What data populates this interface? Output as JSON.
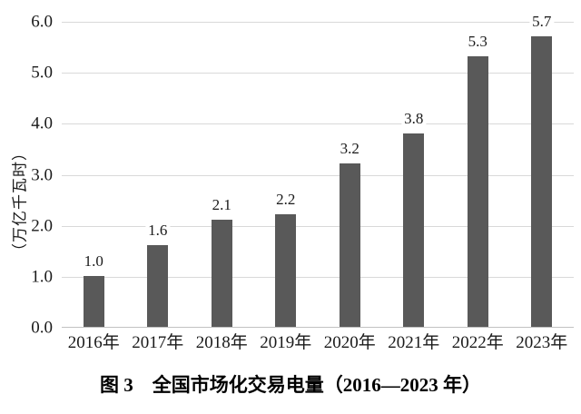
{
  "chart_data": {
    "type": "bar",
    "caption": "图 3　全国市场化交易电量（2016—2023 年）",
    "ylabel": "（万亿千瓦时）",
    "categories": [
      "2016年",
      "2017年",
      "2018年",
      "2019年",
      "2020年",
      "2021年",
      "2022年",
      "2023年"
    ],
    "values": [
      1.0,
      1.6,
      2.1,
      2.2,
      3.2,
      3.8,
      5.3,
      5.7
    ],
    "data_labels": [
      "1.0",
      "1.6",
      "2.1",
      "2.2",
      "3.2",
      "3.8",
      "5.3",
      "5.7"
    ],
    "yticks": [
      "0.0",
      "1.0",
      "2.0",
      "3.0",
      "4.0",
      "5.0",
      "6.0"
    ],
    "ylim": [
      0,
      6
    ],
    "grid": "horizontal",
    "legend_position": "none",
    "bar_color": "#595959",
    "gridline_color": "#d9d9d9",
    "axis_line_color": "#c2c2c2",
    "text_color": "#1a1a1a"
  }
}
